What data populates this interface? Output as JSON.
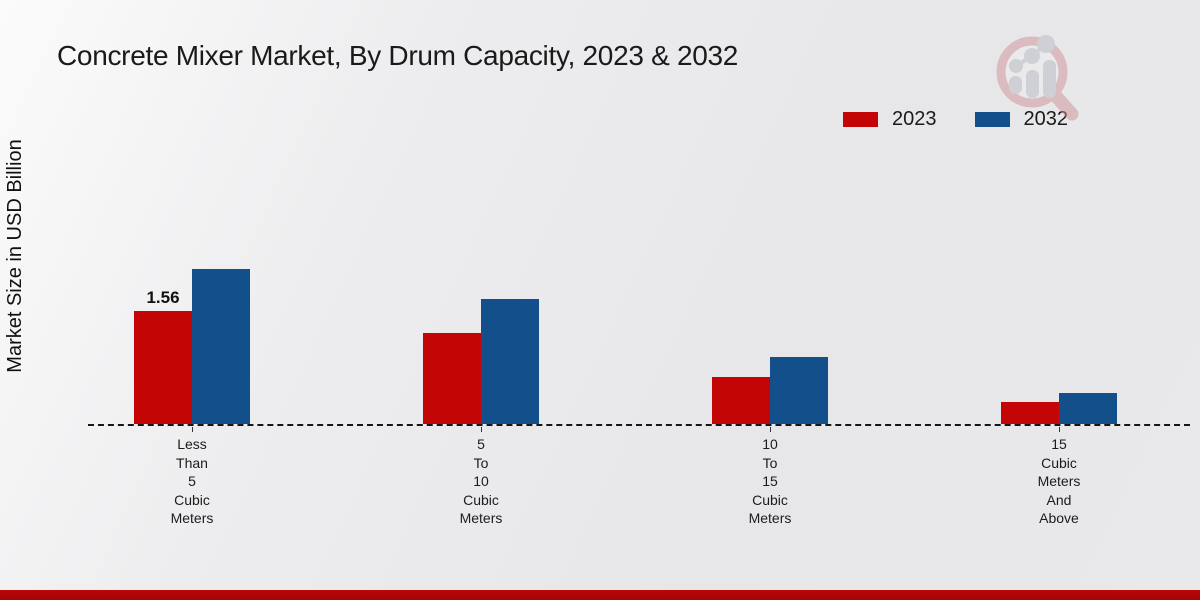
{
  "title": "Concrete Mixer Market, By Drum Capacity, 2023 & 2032",
  "y_axis_label": "Market Size in USD Billion",
  "legend": {
    "items": [
      {
        "label": "2023",
        "color": "#c40505"
      },
      {
        "label": "2032",
        "color": "#134f8a"
      }
    ]
  },
  "colors": {
    "bar_2023": "#c40505",
    "bar_2032": "#134f8a",
    "footer_strip": "#b00606",
    "background": "#e9e9eb"
  },
  "watermark": "market-research-logo",
  "chart_data": {
    "type": "bar",
    "title": "Concrete Mixer Market, By Drum Capacity, 2023 & 2032",
    "xlabel": "",
    "ylabel": "Market Size in USD Billion",
    "categories": [
      "Less Than 5 Cubic Meters",
      "5 To 10 Cubic Meters",
      "10 To 15 Cubic Meters",
      "15 Cubic Meters And Above"
    ],
    "category_lines": [
      [
        "Less",
        "Than",
        "5",
        "Cubic",
        "Meters"
      ],
      [
        "5",
        "To",
        "10",
        "Cubic",
        "Meters"
      ],
      [
        "10",
        "To",
        "15",
        "Cubic",
        "Meters"
      ],
      [
        "15",
        "Cubic",
        "Meters",
        "And",
        "Above"
      ]
    ],
    "series": [
      {
        "name": "2023",
        "color": "#c40505",
        "values": [
          1.56,
          1.25,
          0.65,
          0.3
        ],
        "data_labels": [
          "1.56",
          null,
          null,
          null
        ]
      },
      {
        "name": "2032",
        "color": "#134f8a",
        "values": [
          2.14,
          1.72,
          0.92,
          0.43
        ],
        "data_labels": [
          null,
          null,
          null,
          null
        ]
      }
    ],
    "ylim": [
      0,
      2.4
    ],
    "grid": false,
    "axis_style": "dashed-baseline-only",
    "legend_position": "top-right"
  }
}
